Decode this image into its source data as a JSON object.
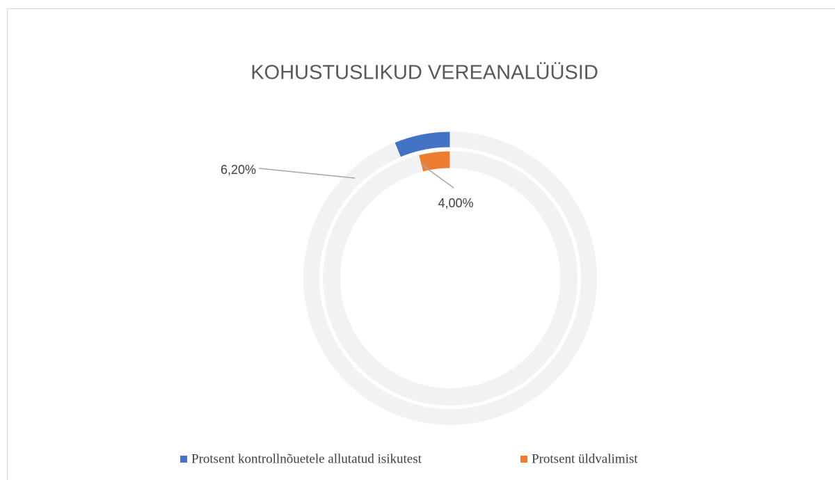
{
  "chart_data": {
    "type": "doughnut",
    "title": "KOHUSTUSLIKUD VEREANALÜÜSID",
    "series": [
      {
        "name": "Protsent kontrollnõuetele allutatud isikutest",
        "color": "#4472c4",
        "values": [
          6.2
        ],
        "value_labels": [
          "6,20%"
        ]
      },
      {
        "name": "Protsent üldvalimist",
        "color": "#ed7d31",
        "values": [
          4.0
        ],
        "value_labels": [
          "4,00%"
        ]
      }
    ],
    "track_color": "#f2f2f2",
    "direction": "counterclockwise",
    "legend": "bottom"
  }
}
